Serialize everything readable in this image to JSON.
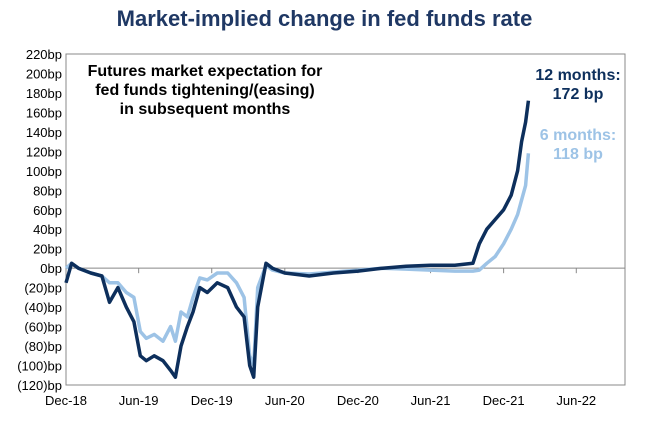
{
  "chart_data": {
    "type": "line",
    "title": "Market-implied change in fed funds rate",
    "annotation": [
      "Futures market expectation for",
      "fed funds tightening/(easing)",
      "in subsequent months"
    ],
    "ylim": [
      -120,
      220
    ],
    "yticks": [
      220,
      200,
      180,
      160,
      140,
      120,
      100,
      80,
      60,
      40,
      20,
      0,
      -20,
      -40,
      -60,
      -80,
      -100,
      -120
    ],
    "ytick_labels": [
      "220bp",
      "200bp",
      "180bp",
      "160bp",
      "140bp",
      "120bp",
      "100bp",
      "80bp",
      "60bp",
      "40bp",
      "20bp",
      "0bp",
      "(20)bp",
      "(40)bp",
      "(60)bp",
      "(80)bp",
      "(100)bp",
      "(120)bp"
    ],
    "xlim": [
      "2018-12-01",
      "2022-10-01"
    ],
    "xticks": [
      "2018-12-01",
      "2019-06-01",
      "2019-12-01",
      "2020-06-01",
      "2020-12-01",
      "2021-06-01",
      "2021-12-01",
      "2022-06-01"
    ],
    "xtick_labels": [
      "Dec-18",
      "Jun-19",
      "Dec-19",
      "Jun-20",
      "Dec-20",
      "Jun-21",
      "Dec-21",
      "Jun-22"
    ],
    "grid": false,
    "series": [
      {
        "name": "12 months",
        "end_label": [
          "12 months:",
          "172 bp"
        ],
        "color": "#0d2f5c",
        "x": [
          "2018-12-01",
          "2018-12-15",
          "2019-01-01",
          "2019-02-01",
          "2019-03-01",
          "2019-03-20",
          "2019-04-10",
          "2019-05-01",
          "2019-05-20",
          "2019-06-05",
          "2019-06-20",
          "2019-07-10",
          "2019-08-01",
          "2019-08-20",
          "2019-09-01",
          "2019-09-15",
          "2019-10-01",
          "2019-10-15",
          "2019-11-01",
          "2019-11-20",
          "2019-12-15",
          "2020-01-10",
          "2020-02-01",
          "2020-02-20",
          "2020-03-05",
          "2020-03-15",
          "2020-03-25",
          "2020-04-15",
          "2020-05-01",
          "2020-06-01",
          "2020-08-01",
          "2020-10-01",
          "2020-12-01",
          "2021-02-01",
          "2021-04-01",
          "2021-06-01",
          "2021-08-01",
          "2021-09-15",
          "2021-10-01",
          "2021-10-20",
          "2021-11-10",
          "2021-12-01",
          "2021-12-20",
          "2022-01-05",
          "2022-01-15",
          "2022-01-25",
          "2022-02-01"
        ],
        "y": [
          -15,
          5,
          0,
          -5,
          -8,
          -35,
          -20,
          -40,
          -55,
          -90,
          -95,
          -90,
          -95,
          -105,
          -112,
          -80,
          -60,
          -45,
          -20,
          -25,
          -15,
          -20,
          -40,
          -50,
          -100,
          -112,
          -40,
          5,
          0,
          -5,
          -8,
          -5,
          -3,
          0,
          2,
          3,
          3,
          5,
          25,
          40,
          50,
          60,
          75,
          100,
          130,
          150,
          172
        ]
      },
      {
        "name": "6 months",
        "end_label": [
          "6 months:",
          "118 bp"
        ],
        "color": "#9dc3e6",
        "x": [
          "2018-12-01",
          "2018-12-15",
          "2019-01-01",
          "2019-02-01",
          "2019-03-01",
          "2019-03-20",
          "2019-04-10",
          "2019-05-01",
          "2019-05-20",
          "2019-06-05",
          "2019-06-20",
          "2019-07-10",
          "2019-08-01",
          "2019-08-20",
          "2019-09-01",
          "2019-09-15",
          "2019-10-01",
          "2019-10-15",
          "2019-11-01",
          "2019-11-20",
          "2019-12-15",
          "2020-01-10",
          "2020-02-01",
          "2020-02-20",
          "2020-03-05",
          "2020-03-15",
          "2020-03-25",
          "2020-04-15",
          "2020-05-01",
          "2020-06-01",
          "2020-08-01",
          "2020-10-01",
          "2020-12-01",
          "2021-02-01",
          "2021-04-01",
          "2021-06-01",
          "2021-08-01",
          "2021-09-15",
          "2021-10-01",
          "2021-10-20",
          "2021-11-10",
          "2021-12-01",
          "2021-12-20",
          "2022-01-05",
          "2022-01-15",
          "2022-01-25",
          "2022-02-01"
        ],
        "y": [
          0,
          5,
          0,
          -5,
          -8,
          -15,
          -15,
          -25,
          -30,
          -65,
          -72,
          -68,
          -75,
          -60,
          -75,
          -45,
          -50,
          -30,
          -10,
          -12,
          -5,
          -5,
          -15,
          -30,
          -90,
          -100,
          -20,
          3,
          -2,
          -5,
          -6,
          -4,
          -2,
          0,
          -1,
          -2,
          -3,
          -3,
          -2,
          5,
          12,
          25,
          40,
          55,
          70,
          85,
          118
        ]
      }
    ]
  }
}
